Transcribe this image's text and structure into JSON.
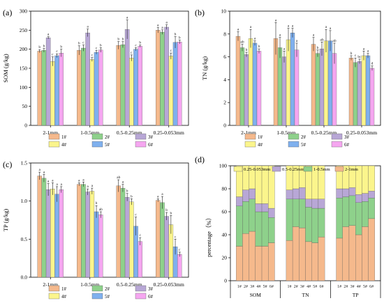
{
  "colors": {
    "s1": "#f5b98c",
    "s2": "#8ed18b",
    "s3": "#b8a7d6",
    "s4": "#fbf58c",
    "s5": "#7fb0ee",
    "s6": "#f5a6f0",
    "axis": "#000000"
  },
  "chart_data": [
    {
      "panel_label": "(a)",
      "type": "bar",
      "ylabel": "SOM (g/kg)",
      "ylim": [
        0,
        300
      ],
      "yticks": [
        0,
        50,
        100,
        150,
        200,
        250,
        300
      ],
      "categories": [
        "2-1mm",
        "1-0.5mm",
        "0.5-0.25mm",
        "0.25-0.053mm"
      ],
      "series": [
        {
          "name": "1#",
          "values": [
            195,
            197,
            210,
            250
          ],
          "err": [
            4,
            12,
            10,
            7
          ],
          "sig": [
            "b",
            "b",
            "b",
            "a"
          ]
        },
        {
          "name": "2#",
          "values": [
            197,
            203,
            212,
            245
          ],
          "err": [
            5,
            8,
            8,
            6
          ],
          "sig": [
            "b",
            "c",
            "b",
            "a"
          ]
        },
        {
          "name": "3#",
          "values": [
            230,
            243,
            252,
            258
          ],
          "err": [
            3,
            10,
            25,
            6
          ],
          "sig": [
            "a",
            "a",
            "a",
            "a"
          ]
        },
        {
          "name": "4#",
          "values": [
            168,
            173,
            177,
            182
          ],
          "err": [
            12,
            5,
            8,
            8
          ],
          "sig": [
            "c",
            "c",
            "c",
            "c"
          ]
        },
        {
          "name": "5#",
          "values": [
            183,
            192,
            200,
            218
          ],
          "err": [
            5,
            5,
            4,
            15
          ],
          "sig": [
            "c",
            "c",
            "c",
            "b"
          ]
        },
        {
          "name": "6#",
          "values": [
            190,
            198,
            208,
            219
          ],
          "err": [
            10,
            6,
            3,
            5
          ],
          "sig": [
            "b",
            "b",
            "b",
            "b"
          ]
        }
      ],
      "legend": [
        "1#",
        "2#",
        "3#",
        "4#",
        "5#",
        "6#"
      ]
    },
    {
      "panel_label": "(b)",
      "type": "bar",
      "ylabel": "TN (g/kg)",
      "ylim": [
        0,
        10
      ],
      "yticks": [
        0,
        2,
        4,
        6,
        8,
        10
      ],
      "categories": [
        "2-1mm",
        "1-0.5mm",
        "0.5-0.25mm",
        "0.25-0.053mm"
      ],
      "series": [
        {
          "name": "1#",
          "values": [
            7.8,
            7.6,
            7.1,
            5.9
          ],
          "err": [
            0.4,
            1.4,
            0.6,
            0.2
          ],
          "sig": [
            "a",
            "a",
            "a",
            "b"
          ]
        },
        {
          "name": "2#",
          "values": [
            6.8,
            6.8,
            6.3,
            5.5
          ],
          "err": [
            0.3,
            0.9,
            0.3,
            0.4
          ],
          "sig": [
            "ab",
            "a",
            "b",
            "c"
          ]
        },
        {
          "name": "3#",
          "values": [
            6.2,
            6.0,
            6.7,
            5.6
          ],
          "err": [
            0.2,
            0.5,
            0.6,
            0.2
          ],
          "sig": [
            "b",
            "a",
            "ab",
            "bc"
          ]
        },
        {
          "name": "4#",
          "values": [
            7.6,
            7.5,
            7.4,
            6.1
          ],
          "err": [
            0.8,
            1.0,
            1.0,
            0.4
          ],
          "sig": [
            "a",
            "a",
            "a",
            "a"
          ]
        },
        {
          "name": "5#",
          "values": [
            7.2,
            8.1,
            7.4,
            6.1
          ],
          "err": [
            0.2,
            0.4,
            0.9,
            0.2
          ],
          "sig": [
            "a",
            "a",
            "a",
            "a"
          ]
        },
        {
          "name": "6#",
          "values": [
            6.5,
            6.6,
            6.3,
            5.0
          ],
          "err": [
            0.2,
            0.6,
            0.9,
            0.2
          ],
          "sig": [
            "b",
            "a",
            "ab",
            "d"
          ]
        }
      ],
      "legend": [
        "1#",
        "2#",
        "3#",
        "4#",
        "5#",
        "6#"
      ]
    },
    {
      "panel_label": "(c)",
      "type": "bar",
      "ylabel": "TP (g/kg)",
      "ylim": [
        0.0,
        1.5
      ],
      "yticks": [
        "0.0",
        "0.5",
        "1.0",
        "1.5"
      ],
      "categories": [
        "2-1mm",
        "1-0.5mm",
        "0.5-0.25mm",
        "0.25-0.053mm"
      ],
      "series": [
        {
          "name": "1#",
          "values": [
            1.33,
            1.22,
            1.2,
            1.01
          ],
          "err": [
            0.05,
            0.02,
            0.08,
            0.02
          ],
          "sig": [
            "a",
            "a",
            "ab",
            "a"
          ]
        },
        {
          "name": "2#",
          "values": [
            1.3,
            1.22,
            1.17,
            0.98
          ],
          "err": [
            0.05,
            0.03,
            0.05,
            0.08
          ],
          "sig": [
            "a",
            "a",
            "a",
            "a"
          ]
        },
        {
          "name": "3#",
          "values": [
            1.15,
            1.12,
            1.05,
            0.8
          ],
          "err": [
            0.08,
            0.04,
            0.05,
            0.05
          ],
          "sig": [
            "a",
            "a",
            "b",
            "b"
          ]
        },
        {
          "name": "4#",
          "values": [
            1.16,
            1.13,
            0.99,
            0.69
          ],
          "err": [
            0.08,
            0.04,
            0.04,
            0.12
          ],
          "sig": [
            "a",
            "a",
            "b",
            "b"
          ]
        },
        {
          "name": "5#",
          "values": [
            1.09,
            0.86,
            0.67,
            0.4
          ],
          "err": [
            0.1,
            0.08,
            0.12,
            0.1
          ],
          "sig": [
            "a",
            "b",
            "c",
            "c"
          ]
        },
        {
          "name": "6#",
          "values": [
            1.15,
            0.82,
            0.47,
            0.3
          ],
          "err": [
            0.04,
            0.04,
            0.05,
            0.03
          ],
          "sig": [
            "a",
            "ab",
            "c",
            "c"
          ]
        }
      ],
      "legend": [
        "1#",
        "2#",
        "3#",
        "4#",
        "5#",
        "6#"
      ]
    },
    {
      "panel_label": "(d)",
      "type": "bar",
      "stacked": true,
      "ylabel": "percentage（%）",
      "ylim": [
        0,
        100
      ],
      "yticks": [
        0,
        20,
        40,
        60,
        80,
        100
      ],
      "groups": [
        "SOM",
        "TN",
        "TP"
      ],
      "categories": [
        "1#",
        "2#",
        "3#",
        "4#",
        "5#",
        "6#"
      ],
      "series": [
        {
          "name": "2-1mm",
          "values": [
            [
              30,
              41,
              43,
              30,
              30,
              33
            ],
            [
              35,
              47,
              46,
              34,
              33,
              38
            ],
            [
              37,
              47,
              48,
              40,
              47,
              54
            ]
          ]
        },
        {
          "name": "1-0.5mm",
          "values": [
            [
              35,
              28,
              28,
              30,
              30,
              22
            ],
            [
              36,
              24,
              25,
              30,
              30,
              25
            ],
            [
              35,
              26,
              26,
              28,
              22,
              18
            ]
          ]
        },
        {
          "name": "0.5-0.25mm",
          "values": [
            [
              8,
              10,
              9,
              7,
              7,
              8
            ],
            [
              8,
              9,
              10,
              7,
              8,
              8
            ],
            [
              8,
              7,
              7,
              7,
              7,
              6
            ]
          ]
        },
        {
          "name": "0.25-0.053mm",
          "values": [
            [
              27,
              21,
              20,
              33,
              33,
              37
            ],
            [
              21,
              20,
              19,
              29,
              29,
              29
            ],
            [
              20,
              20,
              19,
              25,
              24,
              22
            ]
          ]
        }
      ],
      "legend": [
        "0.25-0.053mm",
        "0.5-0.25mm",
        "1-0.5mm",
        "2-1mm"
      ]
    }
  ]
}
